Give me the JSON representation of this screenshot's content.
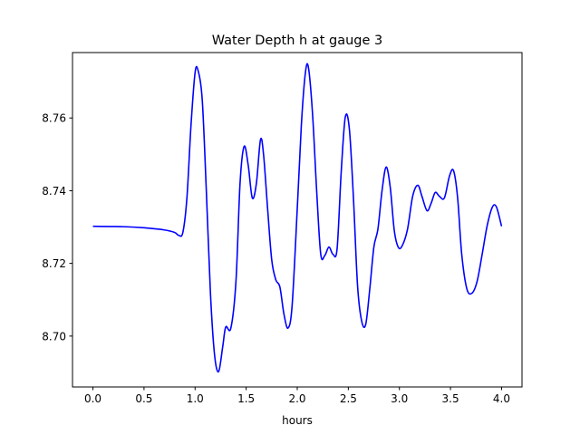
{
  "chart_data": {
    "type": "line",
    "title": "Water Depth h at gauge 3",
    "xlabel": "hours",
    "ylabel": "",
    "xlim": [
      -0.2,
      4.2
    ],
    "ylim": [
      8.686,
      8.778
    ],
    "xticks": [
      0.0,
      0.5,
      1.0,
      1.5,
      2.0,
      2.5,
      3.0,
      3.5,
      4.0
    ],
    "xtick_labels": [
      "0.0",
      "0.5",
      "1.0",
      "1.5",
      "2.0",
      "2.5",
      "3.0",
      "3.5",
      "4.0"
    ],
    "yticks": [
      8.7,
      8.72,
      8.74,
      8.76
    ],
    "ytick_labels": [
      "8.70",
      "8.72",
      "8.74",
      "8.76"
    ],
    "grid": false,
    "series": [
      {
        "color": "#0000ff",
        "x": [
          0.0,
          0.3,
          0.5,
          0.7,
          0.8,
          0.84,
          0.88,
          0.92,
          0.96,
          1.0,
          1.03,
          1.07,
          1.11,
          1.15,
          1.19,
          1.23,
          1.27,
          1.3,
          1.35,
          1.4,
          1.44,
          1.48,
          1.52,
          1.56,
          1.6,
          1.64,
          1.67,
          1.71,
          1.75,
          1.79,
          1.83,
          1.87,
          1.91,
          1.95,
          2.0,
          2.04,
          2.08,
          2.11,
          2.15,
          2.19,
          2.23,
          2.27,
          2.31,
          2.35,
          2.39,
          2.43,
          2.47,
          2.51,
          2.55,
          2.59,
          2.63,
          2.67,
          2.71,
          2.75,
          2.79,
          2.83,
          2.87,
          2.91,
          2.95,
          2.99,
          3.03,
          3.08,
          3.13,
          3.18,
          3.22,
          3.27,
          3.31,
          3.35,
          3.39,
          3.44,
          3.49,
          3.53,
          3.57,
          3.61,
          3.66,
          3.71,
          3.76,
          3.81,
          3.86,
          3.91,
          3.95,
          4.0
        ],
        "y": [
          8.7302,
          8.7301,
          8.7298,
          8.7292,
          8.7285,
          8.7277,
          8.7285,
          8.738,
          8.758,
          8.7725,
          8.773,
          8.765,
          8.74,
          8.712,
          8.695,
          8.6902,
          8.697,
          8.7025,
          8.7022,
          8.715,
          8.742,
          8.7522,
          8.747,
          8.738,
          8.742,
          8.754,
          8.75,
          8.735,
          8.721,
          8.7155,
          8.7135,
          8.706,
          8.7022,
          8.7085,
          8.735,
          8.758,
          8.7725,
          8.7738,
          8.761,
          8.74,
          8.7225,
          8.7222,
          8.7245,
          8.7225,
          8.724,
          8.745,
          8.7602,
          8.757,
          8.738,
          8.714,
          8.7042,
          8.7032,
          8.713,
          8.7245,
          8.7295,
          8.74,
          8.7465,
          8.741,
          8.729,
          8.7244,
          8.725,
          8.7295,
          8.7385,
          8.7415,
          8.7385,
          8.7345,
          8.7365,
          8.7395,
          8.7385,
          8.738,
          8.744,
          8.7455,
          8.738,
          8.7225,
          8.713,
          8.7118,
          8.715,
          8.7225,
          8.7305,
          8.7355,
          8.7355,
          8.7302
        ]
      }
    ]
  }
}
